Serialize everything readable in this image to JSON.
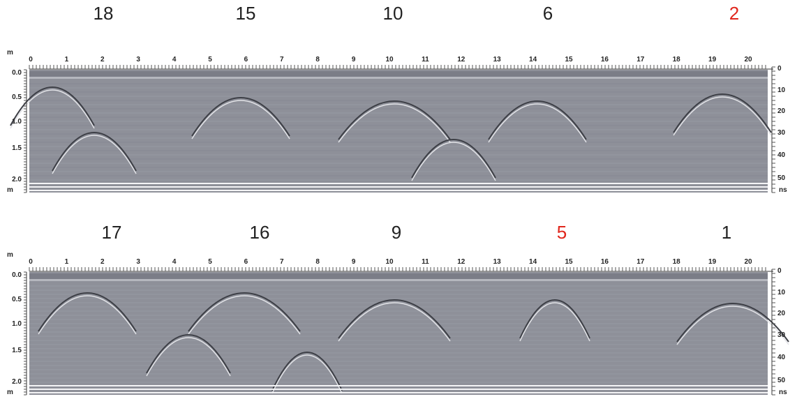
{
  "panels": [
    {
      "labels": [
        {
          "text": "18",
          "color": "#222222"
        },
        {
          "text": "15",
          "color": "#222222"
        },
        {
          "text": "10",
          "color": "#222222"
        },
        {
          "text": "6",
          "color": "#222222"
        },
        {
          "text": "2",
          "color": "#e0261c"
        }
      ],
      "distance_unit": "m",
      "distance_ticks": [
        "0",
        "1",
        "2",
        "3",
        "4",
        "5",
        "6",
        "7",
        "8",
        "9",
        "10",
        "11",
        "12",
        "13",
        "14",
        "15",
        "16",
        "17",
        "18",
        "19",
        "20"
      ],
      "depth_ticks": [
        "0.0",
        "0.5",
        "1.0",
        "1.5",
        "2.0"
      ],
      "depth_unit": "m",
      "time_ticks": [
        "0",
        "10",
        "20",
        "30",
        "40",
        "50"
      ],
      "time_unit": "ns"
    },
    {
      "labels": [
        {
          "text": "17",
          "color": "#222222"
        },
        {
          "text": "16",
          "color": "#222222"
        },
        {
          "text": "9",
          "color": "#222222"
        },
        {
          "text": "5",
          "color": "#e0261c"
        },
        {
          "text": "1",
          "color": "#222222"
        }
      ],
      "distance_unit": "m",
      "distance_ticks": [
        "0",
        "1",
        "2",
        "3",
        "4",
        "5",
        "6",
        "7",
        "8",
        "9",
        "10",
        "11",
        "12",
        "13",
        "14",
        "15",
        "16",
        "17",
        "18",
        "19",
        "20"
      ],
      "depth_ticks": [
        "0.0",
        "0.5",
        "1.0",
        "1.5",
        "2.0"
      ],
      "depth_unit": "m",
      "time_ticks": [
        "0",
        "10",
        "20",
        "30",
        "40",
        "50"
      ],
      "time_unit": "ns"
    }
  ]
}
